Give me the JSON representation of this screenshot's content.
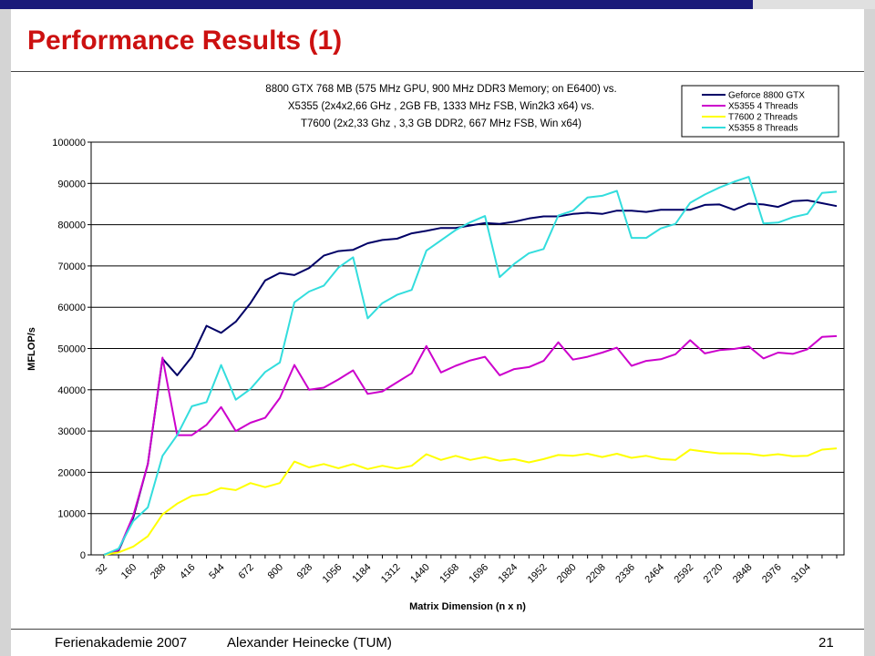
{
  "slide": {
    "title": "Performance Results (1)",
    "footer_left": "Ferienakademie 2007",
    "footer_center": "Alexander Heinecke (TUM)",
    "page_number": "21"
  },
  "chart_data": {
    "type": "line",
    "title_lines": [
      "8800 GTX 768 MB (575 MHz GPU, 900 MHz DDR3 Memory; on E6400) vs.",
      "X5355 (2x4x2,66 GHz , 2GB FB, 1333 MHz FSB, Win2k3 x64) vs.",
      "T7600 (2x2,33 Ghz , 3,3 GB DDR2, 667 MHz FSB, Win x64)"
    ],
    "xlabel": "Matrix Dimension (n x n)",
    "ylabel": "MFLOP/s",
    "ylim": [
      0,
      100000
    ],
    "yticks": [
      0,
      10000,
      20000,
      30000,
      40000,
      50000,
      60000,
      70000,
      80000,
      90000,
      100000
    ],
    "x": [
      32,
      96,
      160,
      224,
      288,
      352,
      416,
      480,
      544,
      608,
      672,
      736,
      800,
      864,
      928,
      992,
      1056,
      1120,
      1184,
      1248,
      1312,
      1376,
      1440,
      1504,
      1568,
      1632,
      1696,
      1760,
      1824,
      1888,
      1952,
      2016,
      2080,
      2144,
      2208,
      2272,
      2336,
      2400,
      2464,
      2528,
      2592,
      2656,
      2720,
      2784,
      2848,
      2912,
      2976,
      3040,
      3104,
      3168,
      3232
    ],
    "xtick_labels": [
      32,
      160,
      288,
      416,
      544,
      672,
      800,
      928,
      1056,
      1184,
      1312,
      1440,
      1568,
      1696,
      1824,
      1952,
      2080,
      2208,
      2336,
      2464,
      2592,
      2720,
      2848,
      2976,
      3104
    ],
    "grid": "horizontal",
    "legend_position": "top-right",
    "series": [
      {
        "name": "Geforce 8800 GTX",
        "color": "#000066",
        "values": [
          0,
          1000,
          9000,
          22000,
          47500,
          43500,
          48000,
          55500,
          53800,
          56500,
          61000,
          66500,
          68300,
          67800,
          69500,
          72500,
          73600,
          73900,
          75500,
          76300,
          76600,
          77900,
          78500,
          79200,
          79200,
          79800,
          80400,
          80200,
          80700,
          81500,
          82000,
          82000,
          82600,
          82900,
          82600,
          83400,
          83400,
          83100,
          83600,
          83600,
          83600,
          84800,
          84900,
          83600,
          85100,
          84900,
          84300,
          85700,
          85900,
          85200,
          84500
        ]
      },
      {
        "name": "X5355 4 Threads",
        "color": "#cc00cc",
        "values": [
          0,
          1200,
          9500,
          22000,
          47800,
          29000,
          29000,
          31500,
          35800,
          30000,
          32000,
          33200,
          38000,
          46000,
          40000,
          40500,
          42500,
          44700,
          39000,
          39600,
          41800,
          44000,
          50600,
          44200,
          45800,
          47100,
          48000,
          43500,
          45000,
          45500,
          47000,
          51500,
          47300,
          48000,
          49000,
          50200,
          45800,
          47000,
          47400,
          48600,
          52000,
          48800,
          49600,
          49900,
          50500,
          47600,
          49000,
          48700,
          49800,
          52800,
          53000
        ]
      },
      {
        "name": "T7600 2 Threads",
        "color": "#ffff00",
        "values": [
          0,
          600,
          2000,
          4500,
          9800,
          12400,
          14300,
          14700,
          16200,
          15700,
          17400,
          16400,
          17400,
          22600,
          21200,
          22000,
          21000,
          22000,
          20800,
          21600,
          20900,
          21600,
          24400,
          23000,
          24000,
          23000,
          23700,
          22800,
          23200,
          22400,
          23200,
          24200,
          24000,
          24500,
          23700,
          24500,
          23500,
          24000,
          23200,
          23000,
          25500,
          25000,
          24600,
          24600,
          24500,
          24000,
          24400,
          23900,
          24000,
          25500,
          25800
        ]
      },
      {
        "name": "X5355 8 Threads",
        "color": "#33dddd",
        "values": [
          0,
          1500,
          8200,
          11500,
          24000,
          29000,
          36000,
          37000,
          46000,
          37600,
          40200,
          44300,
          46600,
          61200,
          63800,
          65200,
          69600,
          72100,
          57300,
          61000,
          63000,
          64200,
          73700,
          76200,
          78700,
          80600,
          82100,
          67300,
          70500,
          73100,
          74100,
          82200,
          83400,
          86600,
          87000,
          88200,
          76800,
          76800,
          79100,
          80200,
          85300,
          87300,
          89000,
          90400,
          91600,
          80300,
          80500,
          81800,
          82600,
          87700,
          88000
        ]
      }
    ]
  }
}
